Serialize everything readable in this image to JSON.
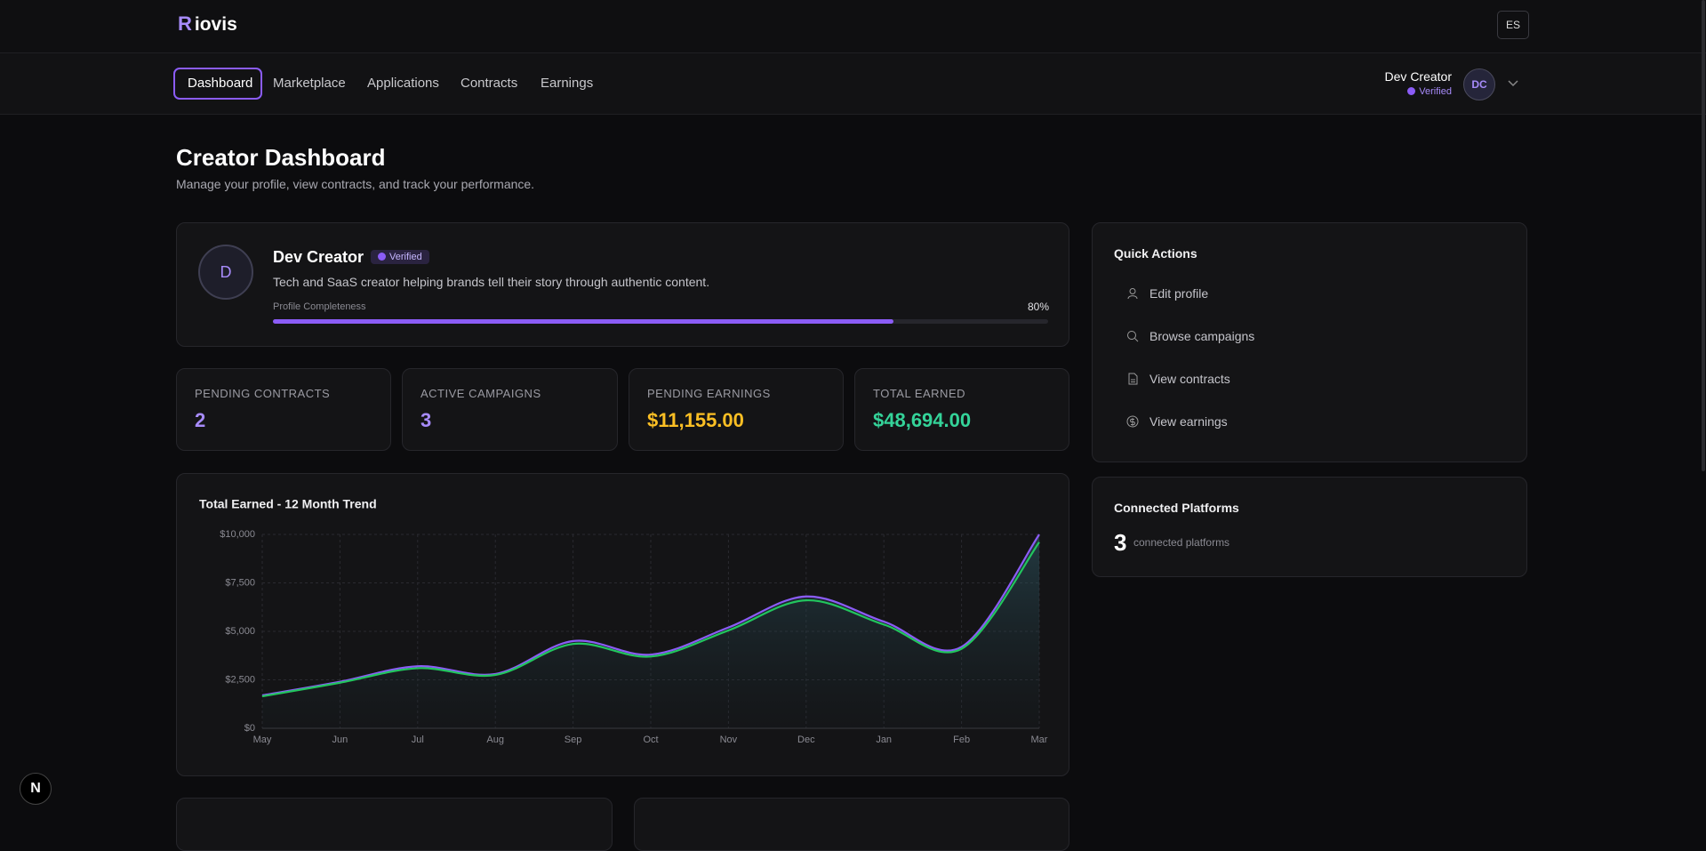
{
  "header": {
    "logo": "iovis",
    "language": "ES"
  },
  "nav": {
    "items": [
      "Dashboard",
      "Marketplace",
      "Applications",
      "Contracts",
      "Earnings"
    ]
  },
  "user": {
    "name": "Dev Creator",
    "status": "Verified",
    "initials": "DC"
  },
  "page": {
    "title": "Creator Dashboard",
    "subtitle": "Manage your profile, view contracts, and track your performance."
  },
  "profile": {
    "initial": "D",
    "name": "Dev Creator",
    "badge": "Verified",
    "bio": "Tech and SaaS creator helping brands tell their story through authentic content.",
    "completeness_label": "Profile Completeness",
    "completeness": {
      "value": 80,
      "label": "80%"
    }
  },
  "stats": [
    {
      "label": "PENDING CONTRACTS",
      "value": "2"
    },
    {
      "label": "ACTIVE CAMPAIGNS",
      "value": "3"
    },
    {
      "label": "PENDING EARNINGS",
      "value": "$11,155.00"
    },
    {
      "label": "TOTAL EARNED",
      "value": "$48,694.00"
    }
  ],
  "chart_data": {
    "type": "line",
    "title": "Total Earned - 12 Month Trend",
    "categories": [
      "May",
      "Jun",
      "Jul",
      "Aug",
      "Sep",
      "Oct",
      "Nov",
      "Dec",
      "Jan",
      "Feb",
      "Mar"
    ],
    "series": [
      {
        "color": "#8b5cf6",
        "values": [
          1700,
          2400,
          3200,
          2800,
          4500,
          3800,
          5200,
          6800,
          5500,
          4200,
          10000
        ]
      },
      {
        "color": "#22c55e",
        "values": [
          1650,
          2350,
          3100,
          2750,
          4350,
          3700,
          5050,
          6600,
          5350,
          4100,
          9600
        ]
      }
    ],
    "ylim": [
      0,
      10000
    ],
    "yticks": [
      {
        "value": 0,
        "label": "$0"
      },
      {
        "value": 2500,
        "label": "$2,500"
      },
      {
        "value": 5000,
        "label": "$5,000"
      },
      {
        "value": 7500,
        "label": "$7,500"
      },
      {
        "value": 10000,
        "label": "$10,000"
      }
    ],
    "grid": true,
    "area": true
  },
  "quick_actions": {
    "title": "Quick Actions",
    "items": [
      "Edit profile",
      "Browse campaigns",
      "View contracts",
      "View earnings"
    ]
  },
  "platforms": {
    "title": "Connected Platforms",
    "count": "3",
    "text": "connected platforms"
  }
}
